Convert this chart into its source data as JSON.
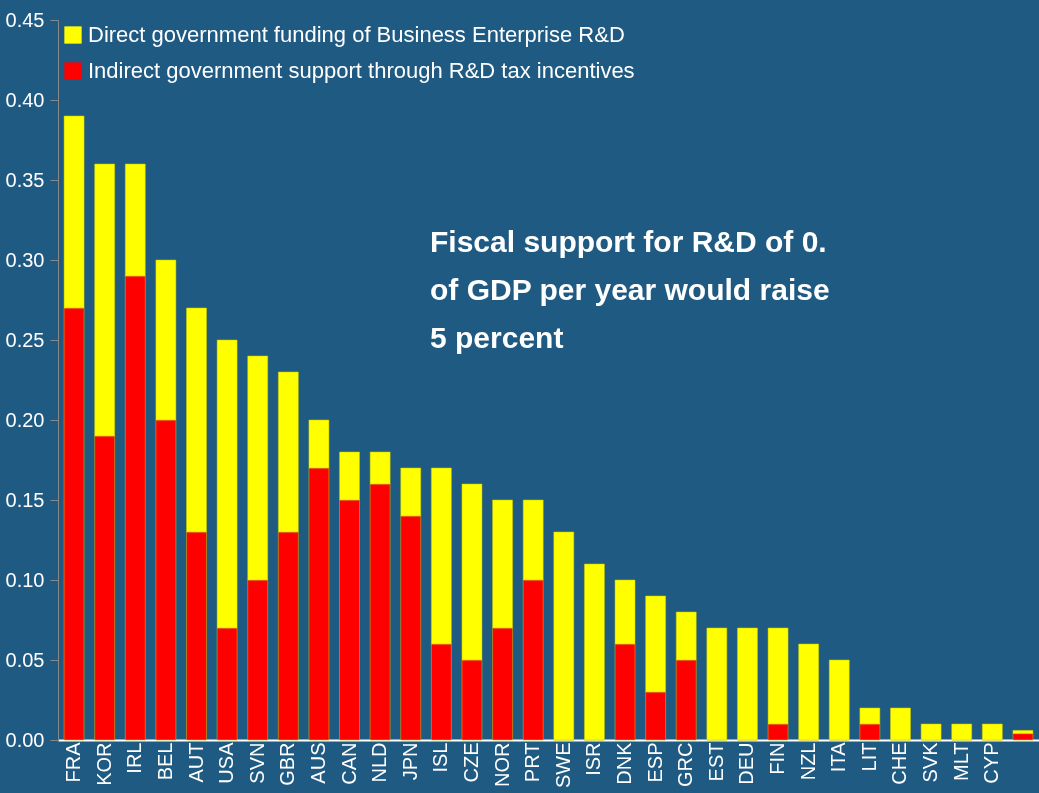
{
  "chart_data": {
    "type": "bar",
    "stacked": true,
    "categories": [
      "FRA",
      "KOR",
      "IRL",
      "BEL",
      "AUT",
      "USA",
      "SVN",
      "GBR",
      "AUS",
      "CAN",
      "NLD",
      "JPN",
      "ISL",
      "CZE",
      "NOR",
      "PRT",
      "SWE",
      "ISR",
      "DNK",
      "ESP",
      "GRC",
      "EST",
      "DEU",
      "FIN",
      "NZL",
      "ITA",
      "LIT",
      "CHE",
      "SVK",
      "MLT",
      "CYP",
      null
    ],
    "series": [
      {
        "name": "Indirect government support through R&D tax incentives",
        "color": "#ff0000",
        "values": [
          0.27,
          0.19,
          0.29,
          0.2,
          0.13,
          0.07,
          0.1,
          0.13,
          0.17,
          0.15,
          0.16,
          0.14,
          0.06,
          0.05,
          0.07,
          0.1,
          0,
          0,
          0.06,
          0.03,
          0.05,
          0,
          0,
          0.01,
          0,
          0,
          0.01,
          0,
          0,
          0,
          0,
          0.004
        ]
      },
      {
        "name": "Direct government funding of Business Enterprise R&D",
        "color": "#ffff00",
        "values": [
          0.12,
          0.17,
          0.07,
          0.1,
          0.14,
          0.18,
          0.14,
          0.1,
          0.03,
          0.03,
          0.02,
          0.03,
          0.11,
          0.11,
          0.08,
          0.05,
          0.13,
          0.11,
          0.04,
          0.06,
          0.03,
          0.07,
          0.07,
          0.06,
          0.06,
          0.05,
          0.01,
          0.02,
          0.01,
          0.01,
          0.01,
          0.002
        ]
      }
    ],
    "ylim": [
      0,
      0.45
    ],
    "yticks": [
      {
        "value": 0,
        "label": "0.00"
      },
      0.05,
      {
        "value": 0.1,
        "label": "0.10"
      },
      0.15,
      {
        "value": 0.2,
        "label": "0.20"
      },
      0.25,
      {
        "value": 0.3,
        "label": "0.30"
      },
      0.35,
      {
        "value": 0.4,
        "label": "0.40"
      },
      0.45
    ],
    "grid": false,
    "legend": "top left",
    "annotations": [
      "Fiscal support for R&D of 0.\nof GDP per year would raise\n5 percent"
    ]
  }
}
